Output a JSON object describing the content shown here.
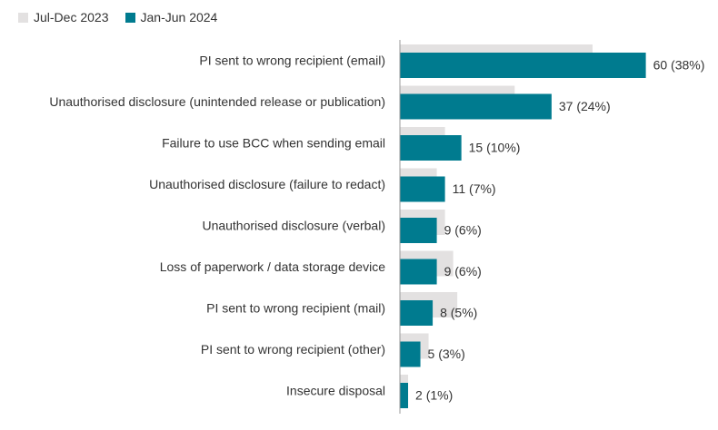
{
  "chart_data": {
    "type": "bar",
    "orientation": "horizontal",
    "title": "",
    "xlabel": "",
    "ylabel": "",
    "categories": [
      "PI sent to wrong recipient (email)",
      "Unauthorised disclosure (unintended release or publication)",
      "Failure to use BCC when sending email",
      "Unauthorised disclosure (failure to redact)",
      "Unauthorised disclosure (verbal)",
      "Loss of paperwork / data storage device",
      "PI sent to wrong recipient (mail)",
      "PI sent to wrong recipient (other)",
      "Insecure disposal"
    ],
    "series": [
      {
        "name": "Jul-Dec 2023",
        "color": "#e3e1e1",
        "values": [
          47,
          28,
          11,
          9,
          11,
          13,
          14,
          7,
          2
        ]
      },
      {
        "name": "Jan-Jun 2024",
        "color": "#007b8f",
        "values": [
          60,
          37,
          15,
          11,
          9,
          9,
          8,
          5,
          2
        ],
        "labels": [
          "60 (38%)",
          "37 (24%)",
          "15 (10%)",
          "11 (7%)",
          "9 (6%)",
          "9 (6%)",
          "8 (5%)",
          "5 (3%)",
          "2 (1%)"
        ]
      }
    ],
    "xlim": [
      0,
      60
    ],
    "grid": false,
    "legend_position": "top-left"
  }
}
